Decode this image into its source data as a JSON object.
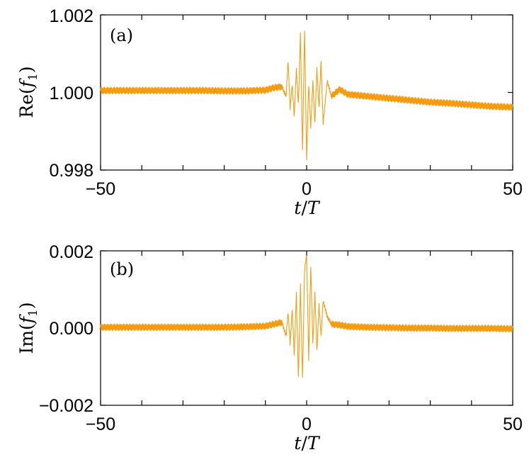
{
  "chart_data": [
    {
      "type": "line",
      "panel_label": "(a)",
      "ylabel_prefix": "Re(",
      "ylabel_var": "f",
      "ylabel_sub": "1",
      "ylabel_suffix": ")",
      "xlabel_var": "t",
      "xlabel_sep": "/",
      "xlabel_var2": "T",
      "xlim": [
        -50,
        50
      ],
      "ylim": [
        0.998,
        1.002
      ],
      "xticks": [
        -50,
        0,
        50
      ],
      "xtick_labels": [
        "−50",
        "0",
        "50"
      ],
      "yticks": [
        0.998,
        1.0,
        1.002
      ],
      "ytick_labels": [
        "0.998",
        "1.000",
        "1.002"
      ],
      "grid": false,
      "color": "#f39c12",
      "series": [
        {
          "x": [
            -50,
            -45,
            -40,
            -35,
            -30,
            -25,
            -20,
            -15,
            -10,
            -8,
            -6,
            -5,
            -4.5,
            -4,
            -3.5,
            -3,
            -2.5,
            -2,
            -1.5,
            -1,
            -0.5,
            0,
            0.5,
            1,
            1.5,
            2,
            2.5,
            3,
            3.5,
            4,
            5,
            6,
            8,
            10,
            15,
            20,
            25,
            30,
            35,
            40,
            45,
            50
          ],
          "y": [
            1.00005,
            1.00005,
            1.00005,
            1.00005,
            1.00005,
            1.00005,
            1.00004,
            1.00004,
            1.00006,
            1.00012,
            1.00015,
            0.9999,
            1.0008,
            0.9996,
            1.0002,
            0.9994,
            1.0006,
            0.9997,
            1.0015,
            0.9985,
            1.0016,
            0.9983,
            1.0002,
            0.9991,
            1.0003,
            0.9992,
            1.0006,
            0.9996,
            1.0008,
            0.9992,
            1.0003,
            0.9999,
            1.00008,
            0.99995,
            0.9999,
            0.99985,
            0.9998,
            0.99975,
            0.99972,
            0.99968,
            0.99964,
            0.99962
          ]
        }
      ]
    },
    {
      "type": "line",
      "panel_label": "(b)",
      "ylabel_prefix": "Im(",
      "ylabel_var": "f",
      "ylabel_sub": "1",
      "ylabel_suffix": ")",
      "xlabel_var": "t",
      "xlabel_sep": "/",
      "xlabel_var2": "T",
      "xlim": [
        -50,
        50
      ],
      "ylim": [
        -0.002,
        0.002
      ],
      "xticks": [
        -50,
        0,
        50
      ],
      "xtick_labels": [
        "−50",
        "0",
        "50"
      ],
      "yticks": [
        -0.002,
        0.0,
        0.002
      ],
      "ytick_labels": [
        "−0.002",
        "0.000",
        "0.002"
      ],
      "grid": false,
      "color": "#f39c12",
      "series": [
        {
          "x": [
            -50,
            -45,
            -40,
            -35,
            -30,
            -25,
            -20,
            -15,
            -10,
            -8,
            -6,
            -5,
            -4.5,
            -4,
            -3.5,
            -3,
            -2.5,
            -2,
            -1.5,
            -1,
            -0.5,
            0,
            0.5,
            1,
            1.5,
            2,
            2.5,
            3,
            3.5,
            4,
            5,
            6,
            8,
            10,
            15,
            20,
            25,
            30,
            35,
            40,
            45,
            50
          ],
          "y": [
            2e-05,
            2e-05,
            2e-05,
            2e-05,
            2e-05,
            2e-05,
            2e-05,
            3e-05,
            5e-05,
            0.0001,
            0.00015,
            -0.0002,
            0.0004,
            -0.0004,
            0.0005,
            -0.0007,
            0.0009,
            -0.0013,
            0.0011,
            -0.0013,
            0.0015,
            0.0019,
            -0.0008,
            0.0016,
            -0.0004,
            0.0009,
            -0.0006,
            0.0006,
            -0.0002,
            0.0007,
            0.0003,
            0.0001,
            8e-05,
            4e-05,
            2e-05,
            1e-05,
            0.0,
            0.0,
            -1e-05,
            -1e-05,
            -1e-05,
            -2e-05
          ]
        }
      ]
    }
  ]
}
